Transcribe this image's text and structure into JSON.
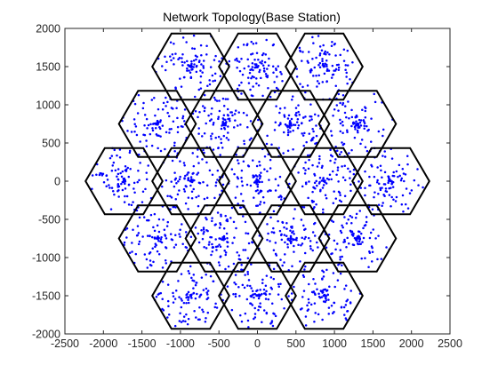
{
  "chart_data": {
    "type": "scatter",
    "title": "Network Topology(Base Station)",
    "xlabel": "",
    "ylabel": "",
    "xlim": [
      -2500,
      2500
    ],
    "ylim": [
      -2000,
      2000
    ],
    "xticks": [
      -2500,
      -2000,
      -1500,
      -1000,
      -500,
      0,
      500,
      1000,
      1500,
      2000,
      2500
    ],
    "yticks": [
      -2000,
      -1500,
      -1000,
      -500,
      0,
      500,
      1000,
      1500,
      2000
    ],
    "xtick_labels": [
      "-2500",
      "-2000",
      "-1500",
      "-1000",
      "-500",
      "0",
      "500",
      "1000",
      "1500",
      "2000",
      "2500"
    ],
    "ytick_labels": [
      "-2000",
      "-1500",
      "-1000",
      "-500",
      "0",
      "500",
      "1000",
      "1500",
      "2000"
    ],
    "grid": false,
    "hexagon_radius": 500,
    "cell_centers": [
      [
        -866,
        1500
      ],
      [
        0,
        1500
      ],
      [
        866,
        1500
      ],
      [
        -1299,
        750
      ],
      [
        -433,
        750
      ],
      [
        433,
        750
      ],
      [
        1299,
        750
      ],
      [
        -1732,
        0
      ],
      [
        -866,
        0
      ],
      [
        0,
        0
      ],
      [
        866,
        0
      ],
      [
        1732,
        0
      ],
      [
        -1299,
        -750
      ],
      [
        -433,
        -750
      ],
      [
        433,
        -750
      ],
      [
        1299,
        -750
      ],
      [
        -866,
        -1500
      ],
      [
        0,
        -1500
      ],
      [
        866,
        -1500
      ]
    ],
    "users_per_cell": 100,
    "user_marker_color": "#0000ff",
    "hexagon_edge_color": "#000000"
  }
}
